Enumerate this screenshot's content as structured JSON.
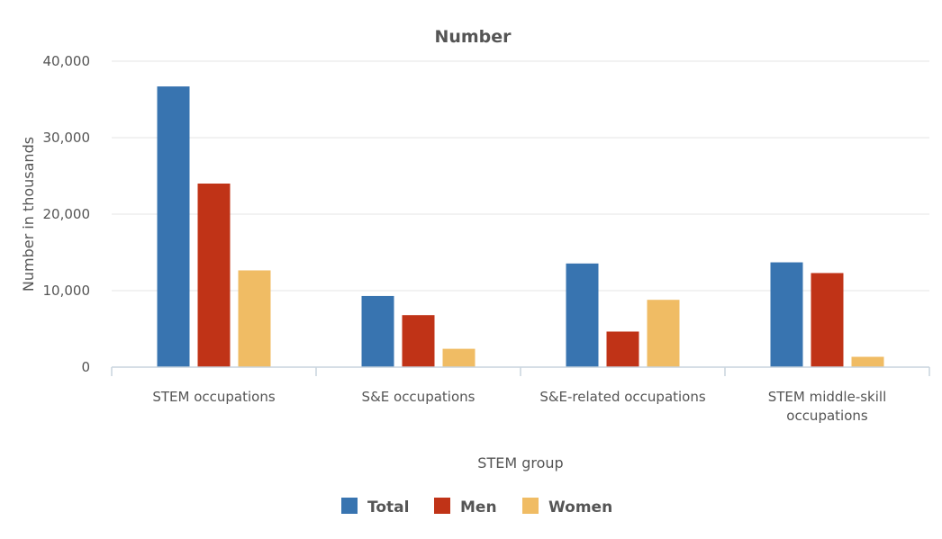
{
  "chart_data": {
    "type": "bar",
    "title": "Number",
    "xlabel": "STEM group",
    "ylabel": "Number in thousands",
    "ylim": [
      0,
      40000
    ],
    "yticks": [
      0,
      10000,
      20000,
      30000,
      40000
    ],
    "ytick_labels": [
      "0",
      "10,000",
      "20,000",
      "30,000",
      "40,000"
    ],
    "grid": true,
    "legend": "bottom-center",
    "categories": [
      [
        "STEM occupations"
      ],
      [
        "S&E occupations"
      ],
      [
        "S&E-related occupations"
      ],
      [
        "STEM middle-skill",
        "occupations"
      ]
    ],
    "series": [
      {
        "name": "Total",
        "color": "#3874b0",
        "values": [
          36700,
          9300,
          13550,
          13700
        ]
      },
      {
        "name": "Men",
        "color": "#c03317",
        "values": [
          24000,
          6800,
          4650,
          12300
        ]
      },
      {
        "name": "Women",
        "color": "#f0bc64",
        "values": [
          12650,
          2400,
          8800,
          1350
        ]
      }
    ]
  }
}
